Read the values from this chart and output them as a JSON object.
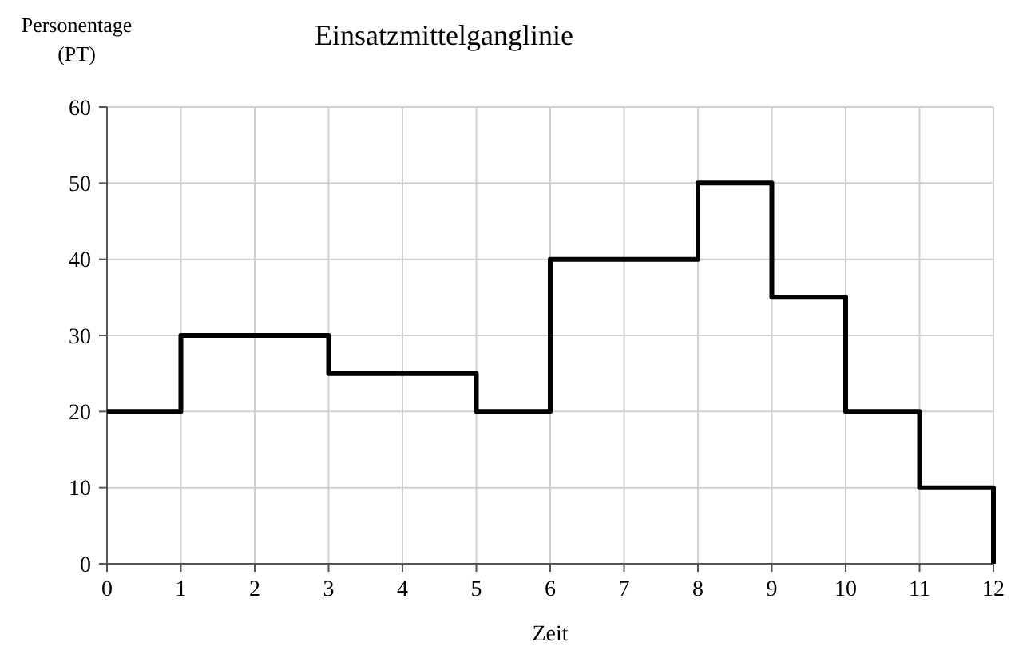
{
  "chart_data": {
    "type": "step",
    "title": "Einsatzmittelganglinie",
    "xlabel": "Zeit",
    "ylabel": "Personentage (PT)",
    "x": [
      0,
      1,
      2,
      3,
      4,
      5,
      6,
      7,
      8,
      9,
      10,
      11,
      12
    ],
    "series": [
      {
        "color": "#000000",
        "values": [
          20,
          30,
          30,
          25,
          25,
          20,
          40,
          40,
          50,
          35,
          20,
          10,
          0
        ]
      }
    ],
    "xlim": [
      0,
      12
    ],
    "xticks": [
      0,
      1,
      2,
      3,
      4,
      5,
      6,
      7,
      8,
      9,
      10,
      11,
      12
    ],
    "ylim": [
      0,
      60
    ],
    "yticks": [
      0,
      10,
      20,
      30,
      40,
      50,
      60
    ],
    "grid": true,
    "marker": "none",
    "line_style": "solid"
  }
}
